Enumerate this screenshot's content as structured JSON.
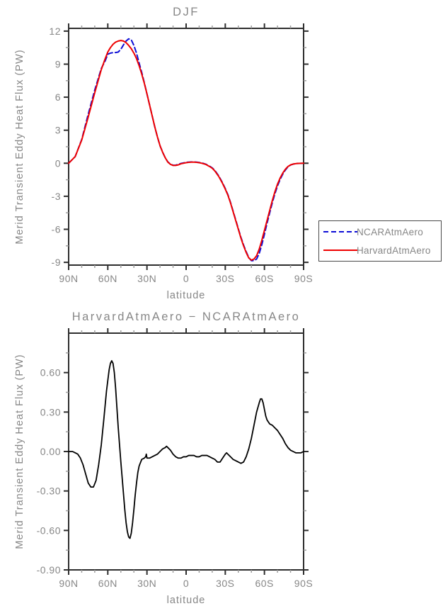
{
  "colors": {
    "background": "#ffffff",
    "axis": "#2e2e2e",
    "minor_tick": "#9e9e9e",
    "text": "#878787",
    "ncar_blue": "#0d0dd6",
    "harvard_red": "#ee0000",
    "diff_black": "#000000",
    "legend_border": "#4a4a4a"
  },
  "legend": {
    "entries": [
      {
        "label": "NCARAtmAero",
        "color": "#0d0dd6",
        "dash": "7,4"
      },
      {
        "label": "HarvardAtmAero",
        "color": "#ee0000",
        "dash": ""
      }
    ]
  },
  "chart_data": [
    {
      "type": "line",
      "title": "DJF",
      "xlabel": "latitude",
      "ylabel": "Merid Transient Eddy Heat Flux (PW)",
      "xlim": [
        90,
        -90
      ],
      "ylim": [
        -9.25,
        12.25
      ],
      "grid": false,
      "legend_position": "outside-right",
      "x_ticks": {
        "values": [
          90,
          60,
          30,
          0,
          -30,
          -60,
          -90
        ],
        "labels": [
          "90N",
          "60N",
          "30N",
          "0",
          "30S",
          "60S",
          "90S"
        ]
      },
      "x_minor_ticks": [
        80,
        70,
        50,
        40,
        20,
        10,
        -10,
        -20,
        -40,
        -50,
        -70,
        -80
      ],
      "y_ticks": {
        "values": [
          12,
          9,
          6,
          3,
          0,
          -3,
          -6,
          -9
        ],
        "labels": [
          "12",
          "9",
          "6",
          "3",
          "0",
          "-3",
          "-6",
          "-9"
        ]
      },
      "y_minor_ticks": [
        10.5,
        7.5,
        4.5,
        1.5,
        -1.5,
        -4.5,
        -7.5
      ],
      "lat": [
        90,
        85,
        80,
        75,
        70,
        65,
        62,
        60,
        58,
        56,
        54,
        52,
        50,
        48,
        46,
        44,
        42,
        40,
        38,
        36,
        34,
        32,
        30,
        28,
        26,
        24,
        22,
        20,
        18,
        16,
        14,
        12,
        10,
        8,
        6,
        4,
        2,
        0,
        -2,
        -4,
        -6,
        -8,
        -10,
        -12,
        -15,
        -18,
        -20,
        -22,
        -25,
        -28,
        -30,
        -32,
        -34,
        -36,
        -38,
        -40,
        -42,
        -44,
        -46,
        -48,
        -50,
        -52,
        -54,
        -56,
        -58,
        -60,
        -62,
        -64,
        -66,
        -68,
        -70,
        -72,
        -74,
        -76,
        -78,
        -80,
        -82,
        -85,
        -90
      ],
      "series": [
        {
          "name": "NCARAtmAero",
          "color": "#0d0dd6",
          "dash": "7,4",
          "width": 2,
          "values": [
            0,
            0.6,
            2.15,
            4.45,
            6.65,
            8.6,
            9.3,
            9.9,
            10.0,
            10.05,
            10.05,
            10.1,
            10.35,
            10.75,
            11.1,
            11.3,
            11.2,
            10.7,
            10.0,
            9.1,
            8.25,
            7.3,
            6.3,
            5.3,
            4.3,
            3.3,
            2.4,
            1.6,
            1.0,
            0.5,
            0.12,
            -0.08,
            -0.18,
            -0.17,
            -0.1,
            -0.02,
            0.03,
            0.08,
            0.1,
            0.12,
            0.12,
            0.1,
            0.07,
            0.03,
            -0.08,
            -0.27,
            -0.42,
            -0.65,
            -1.15,
            -1.8,
            -2.3,
            -2.85,
            -3.55,
            -4.35,
            -5.15,
            -5.95,
            -6.73,
            -7.42,
            -8.03,
            -8.56,
            -8.85,
            -8.85,
            -8.7,
            -8.2,
            -7.4,
            -6.45,
            -5.45,
            -4.52,
            -3.6,
            -2.78,
            -2.06,
            -1.48,
            -1.0,
            -0.62,
            -0.33,
            -0.16,
            -0.08,
            -0.02,
            0
          ]
        },
        {
          "name": "HarvardAtmAero",
          "color": "#ee0000",
          "dash": "",
          "width": 2,
          "values": [
            0,
            0.6,
            2.1,
            4.2,
            6.4,
            8.5,
            9.5,
            10.1,
            10.5,
            10.8,
            11.0,
            11.1,
            11.15,
            11.1,
            10.95,
            10.7,
            10.4,
            10.0,
            9.5,
            8.85,
            8.1,
            7.25,
            6.3,
            5.3,
            4.3,
            3.3,
            2.4,
            1.6,
            1.0,
            0.5,
            0.1,
            -0.1,
            -0.2,
            -0.2,
            -0.15,
            -0.05,
            0.0,
            0.05,
            0.08,
            0.1,
            0.1,
            0.08,
            0.05,
            0.0,
            -0.1,
            -0.3,
            -0.45,
            -0.7,
            -1.2,
            -1.85,
            -2.35,
            -2.9,
            -3.6,
            -4.4,
            -5.2,
            -6.0,
            -6.8,
            -7.5,
            -8.1,
            -8.6,
            -8.8,
            -8.7,
            -8.4,
            -7.8,
            -7.0,
            -6.1,
            -5.2,
            -4.3,
            -3.4,
            -2.6,
            -1.9,
            -1.35,
            -0.9,
            -0.55,
            -0.3,
            -0.15,
            -0.07,
            -0.02,
            0
          ]
        }
      ]
    },
    {
      "type": "line",
      "title": "HarvardAtmAero − NCARAtmAero",
      "xlabel": "latitude",
      "ylabel": "Merid Transient Eddy Heat Flux (PW)",
      "xlim": [
        90,
        -90
      ],
      "ylim": [
        -0.9,
        0.9
      ],
      "grid": false,
      "x_ticks": {
        "values": [
          90,
          60,
          30,
          0,
          -30,
          -60,
          -90
        ],
        "labels": [
          "90N",
          "60N",
          "30N",
          "0",
          "30S",
          "60S",
          "90S"
        ]
      },
      "x_minor_ticks": [
        80,
        70,
        50,
        40,
        20,
        10,
        -10,
        -20,
        -40,
        -50,
        -70,
        -80
      ],
      "y_ticks": {
        "values": [
          0.6,
          0.3,
          0.0,
          -0.3,
          -0.6,
          -0.9
        ],
        "labels": [
          "0.60",
          "0.30",
          "0.00",
          "-0.30",
          "-0.60",
          "-0.90"
        ]
      },
      "y_minor_ticks": [
        0.75,
        0.45,
        0.15,
        -0.15,
        -0.45,
        -0.75
      ],
      "lat": [
        90,
        87,
        85,
        83,
        81,
        79,
        77,
        75,
        73,
        71,
        69,
        67,
        65,
        63,
        61,
        59,
        58,
        57,
        56,
        55,
        54,
        53,
        52,
        51,
        50,
        49,
        48,
        47,
        46,
        45,
        44,
        43,
        42,
        41,
        40,
        39,
        38,
        37,
        36,
        34,
        32,
        31,
        30.5,
        30,
        28,
        26,
        24,
        22,
        20,
        18,
        16,
        15,
        14,
        12,
        10,
        8,
        6,
        4,
        2,
        0,
        -2,
        -4,
        -6,
        -8,
        -10,
        -12,
        -14,
        -16,
        -18,
        -20,
        -22,
        -24,
        -26,
        -28,
        -30,
        -31,
        -32,
        -34,
        -36,
        -38,
        -40,
        -42,
        -44,
        -46,
        -48,
        -50,
        -52,
        -54,
        -56,
        -57,
        -58,
        -59,
        -60,
        -61,
        -62,
        -64,
        -66,
        -68,
        -70,
        -72,
        -74,
        -76,
        -78,
        -80,
        -82,
        -84,
        -86,
        -88,
        -90
      ],
      "series": [
        {
          "name": "HarvardAtmAero − NCARAtmAero",
          "color": "#000000",
          "dash": "",
          "width": 1.8,
          "values": [
            0.0,
            0.0,
            -0.01,
            -0.02,
            -0.05,
            -0.1,
            -0.17,
            -0.24,
            -0.27,
            -0.27,
            -0.22,
            -0.1,
            0.05,
            0.25,
            0.46,
            0.62,
            0.67,
            0.69,
            0.67,
            0.6,
            0.48,
            0.33,
            0.18,
            0.05,
            -0.08,
            -0.2,
            -0.32,
            -0.44,
            -0.54,
            -0.61,
            -0.65,
            -0.66,
            -0.62,
            -0.54,
            -0.44,
            -0.33,
            -0.24,
            -0.16,
            -0.11,
            -0.06,
            -0.05,
            -0.04,
            -0.02,
            -0.05,
            -0.05,
            -0.04,
            -0.03,
            -0.02,
            0.0,
            0.02,
            0.03,
            0.04,
            0.03,
            0.01,
            -0.02,
            -0.04,
            -0.05,
            -0.05,
            -0.04,
            -0.04,
            -0.03,
            -0.03,
            -0.03,
            -0.04,
            -0.04,
            -0.03,
            -0.03,
            -0.03,
            -0.04,
            -0.05,
            -0.06,
            -0.08,
            -0.08,
            -0.05,
            -0.02,
            -0.01,
            -0.02,
            -0.04,
            -0.06,
            -0.07,
            -0.08,
            -0.09,
            -0.08,
            -0.04,
            0.02,
            0.1,
            0.2,
            0.3,
            0.37,
            0.4,
            0.4,
            0.37,
            0.32,
            0.27,
            0.24,
            0.21,
            0.2,
            0.18,
            0.16,
            0.13,
            0.1,
            0.06,
            0.03,
            0.01,
            0.0,
            -0.01,
            -0.01,
            -0.01,
            0.0
          ]
        }
      ]
    }
  ]
}
